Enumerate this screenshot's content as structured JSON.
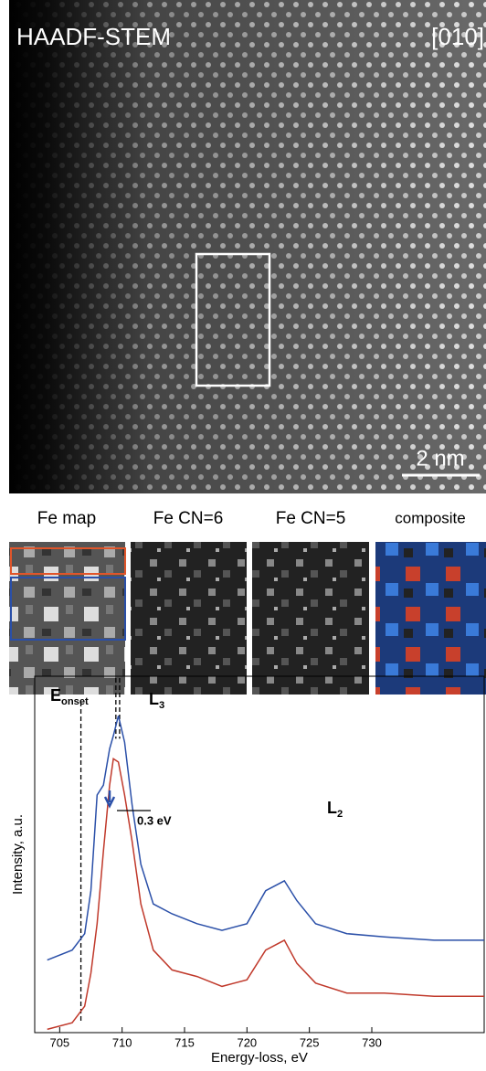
{
  "image": {
    "title": "HAADF-STEM",
    "zone": "[010]",
    "scale": "2 nm"
  },
  "panels": [
    "Fe map",
    "Fe CN=6",
    "Fe CN=5",
    "composite"
  ],
  "chart_data": {
    "type": "line",
    "xlabel": "Energy-loss, eV",
    "ylabel": "Intensity, a.u.",
    "onset_label": {
      "main": "E",
      "sub": "onset"
    },
    "peak_labels": [
      {
        "main": "L",
        "sub": "3"
      },
      {
        "main": "L",
        "sub": "2"
      }
    ],
    "shift_label": "0.3 eV",
    "markers": [
      706.7,
      709.5,
      709.8
    ],
    "x": [
      704,
      706,
      707,
      707.5,
      708,
      708.5,
      709,
      709.3,
      709.7,
      710.2,
      710.8,
      711.5,
      712.5,
      714,
      716,
      718,
      720,
      721.5,
      723,
      724,
      725.5,
      728,
      731,
      735,
      739
    ],
    "series": [
      {
        "color": "#2a4fa8",
        "values": [
          22,
          25,
          30,
          43,
          72,
          75,
          86,
          90,
          96,
          88,
          69,
          51,
          39,
          36,
          33,
          31,
          33,
          43,
          46,
          40,
          33,
          30,
          29,
          28,
          28
        ]
      },
      {
        "color": "#c0392b",
        "values": [
          1,
          3,
          8,
          18,
          33,
          55,
          75,
          83,
          82,
          72,
          58,
          39,
          25,
          19,
          17,
          14,
          16,
          25,
          28,
          21,
          15,
          12,
          12,
          11,
          11
        ]
      }
    ],
    "xlim": [
      703,
      739
    ],
    "ylim": [
      0,
      108
    ],
    "xticks": [
      705,
      710,
      715,
      720,
      725,
      730
    ]
  }
}
